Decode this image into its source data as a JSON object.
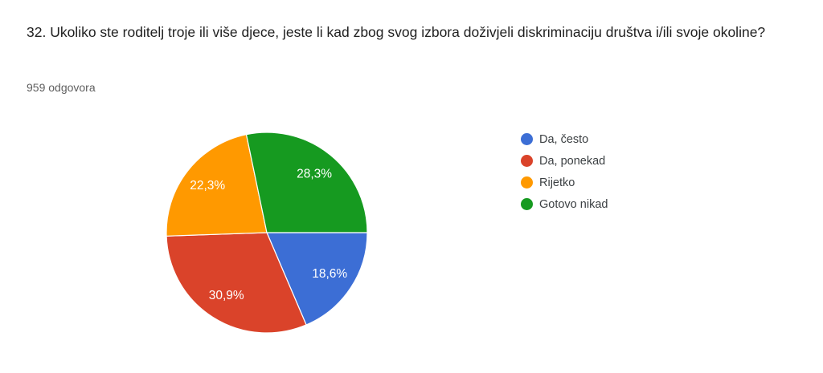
{
  "question": {
    "title": "32. Ukoliko ste roditelj troje ili više djece, jeste li kad zbog svog izbora doživjeli diskriminaciju društva i/ili svoje okoline?",
    "responses_count": "959 odgovora"
  },
  "chart_data": {
    "type": "pie",
    "title": "",
    "legend_position": "right",
    "start_angle_deg": 90,
    "direction": "clockwise",
    "label_style": "percent with decimal comma, white, inside slice",
    "slices": [
      {
        "label": "Da, često",
        "percent": 18.6,
        "percent_label": "18,6%",
        "color": "#3C6ED5"
      },
      {
        "label": "Da, ponekad",
        "percent": 30.9,
        "percent_label": "30,9%",
        "color": "#DA432A"
      },
      {
        "label": "Rijetko",
        "percent": 22.3,
        "percent_label": "22,3%",
        "color": "#FF9900"
      },
      {
        "label": "Gotovo nikad",
        "percent": 28.3,
        "percent_label": "28,3%",
        "color": "#169A20"
      }
    ],
    "slice_border_color": "#ffffff"
  }
}
